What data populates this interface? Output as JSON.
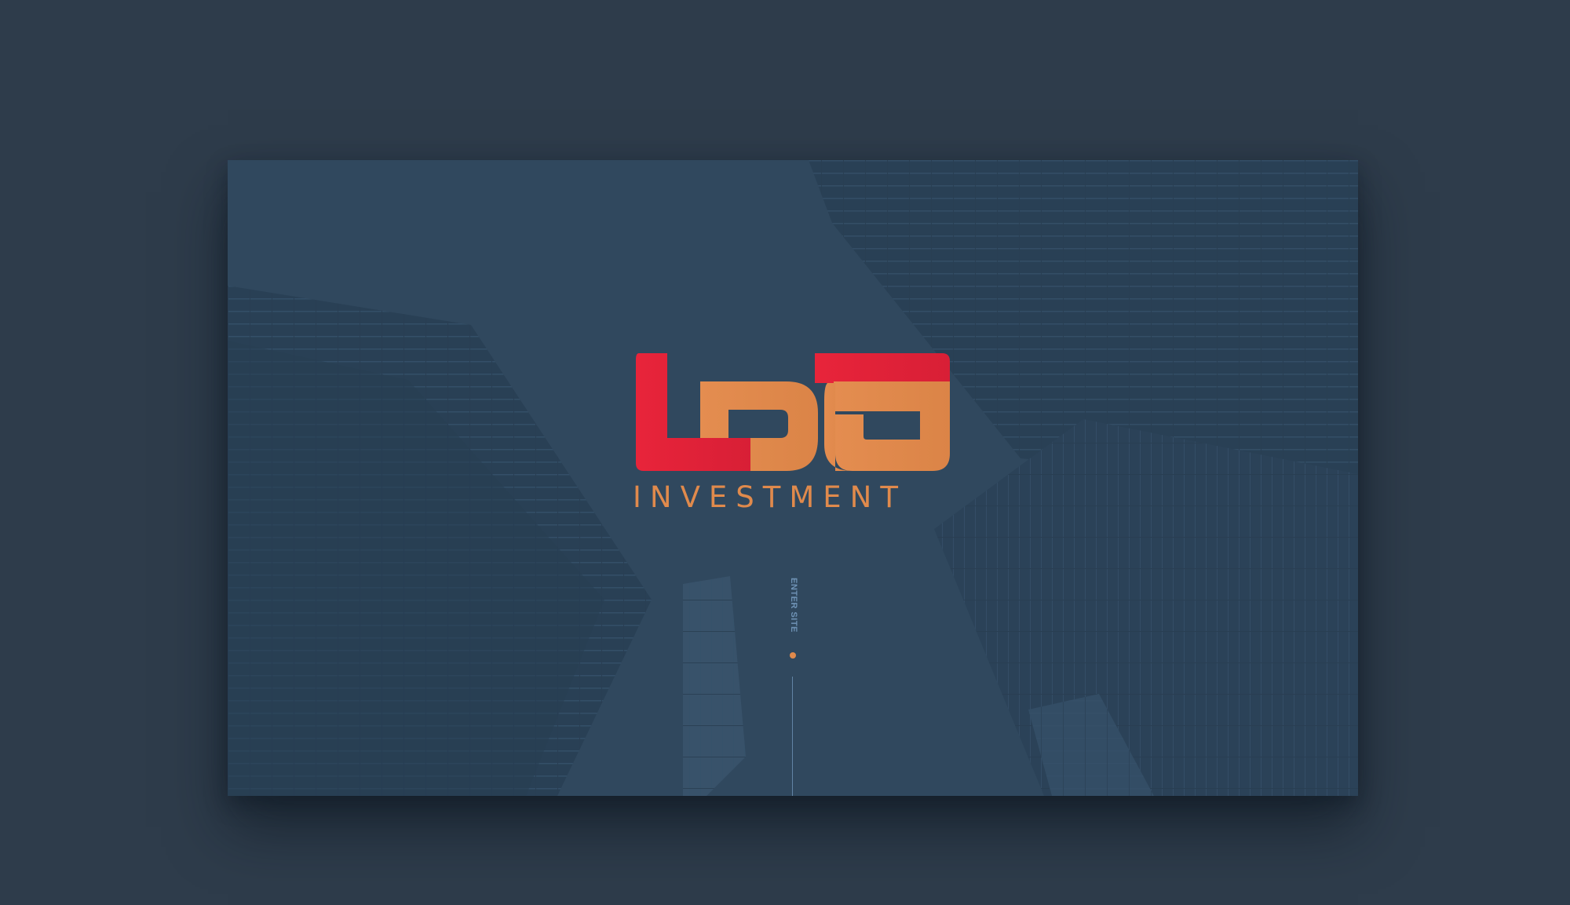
{
  "brand": {
    "logo_letters": "LDG",
    "name": "INVESTMENT"
  },
  "nav": {
    "enter_label": "ENTER SITE"
  },
  "colors": {
    "page_background": "#2e3c4b",
    "hero_tint": "#2f465c",
    "brand_red": "#e8243a",
    "brand_orange": "#e08a4c",
    "accent_blue": "#6f93b6"
  },
  "icons": {
    "scroll_indicator": "dot-icon"
  }
}
